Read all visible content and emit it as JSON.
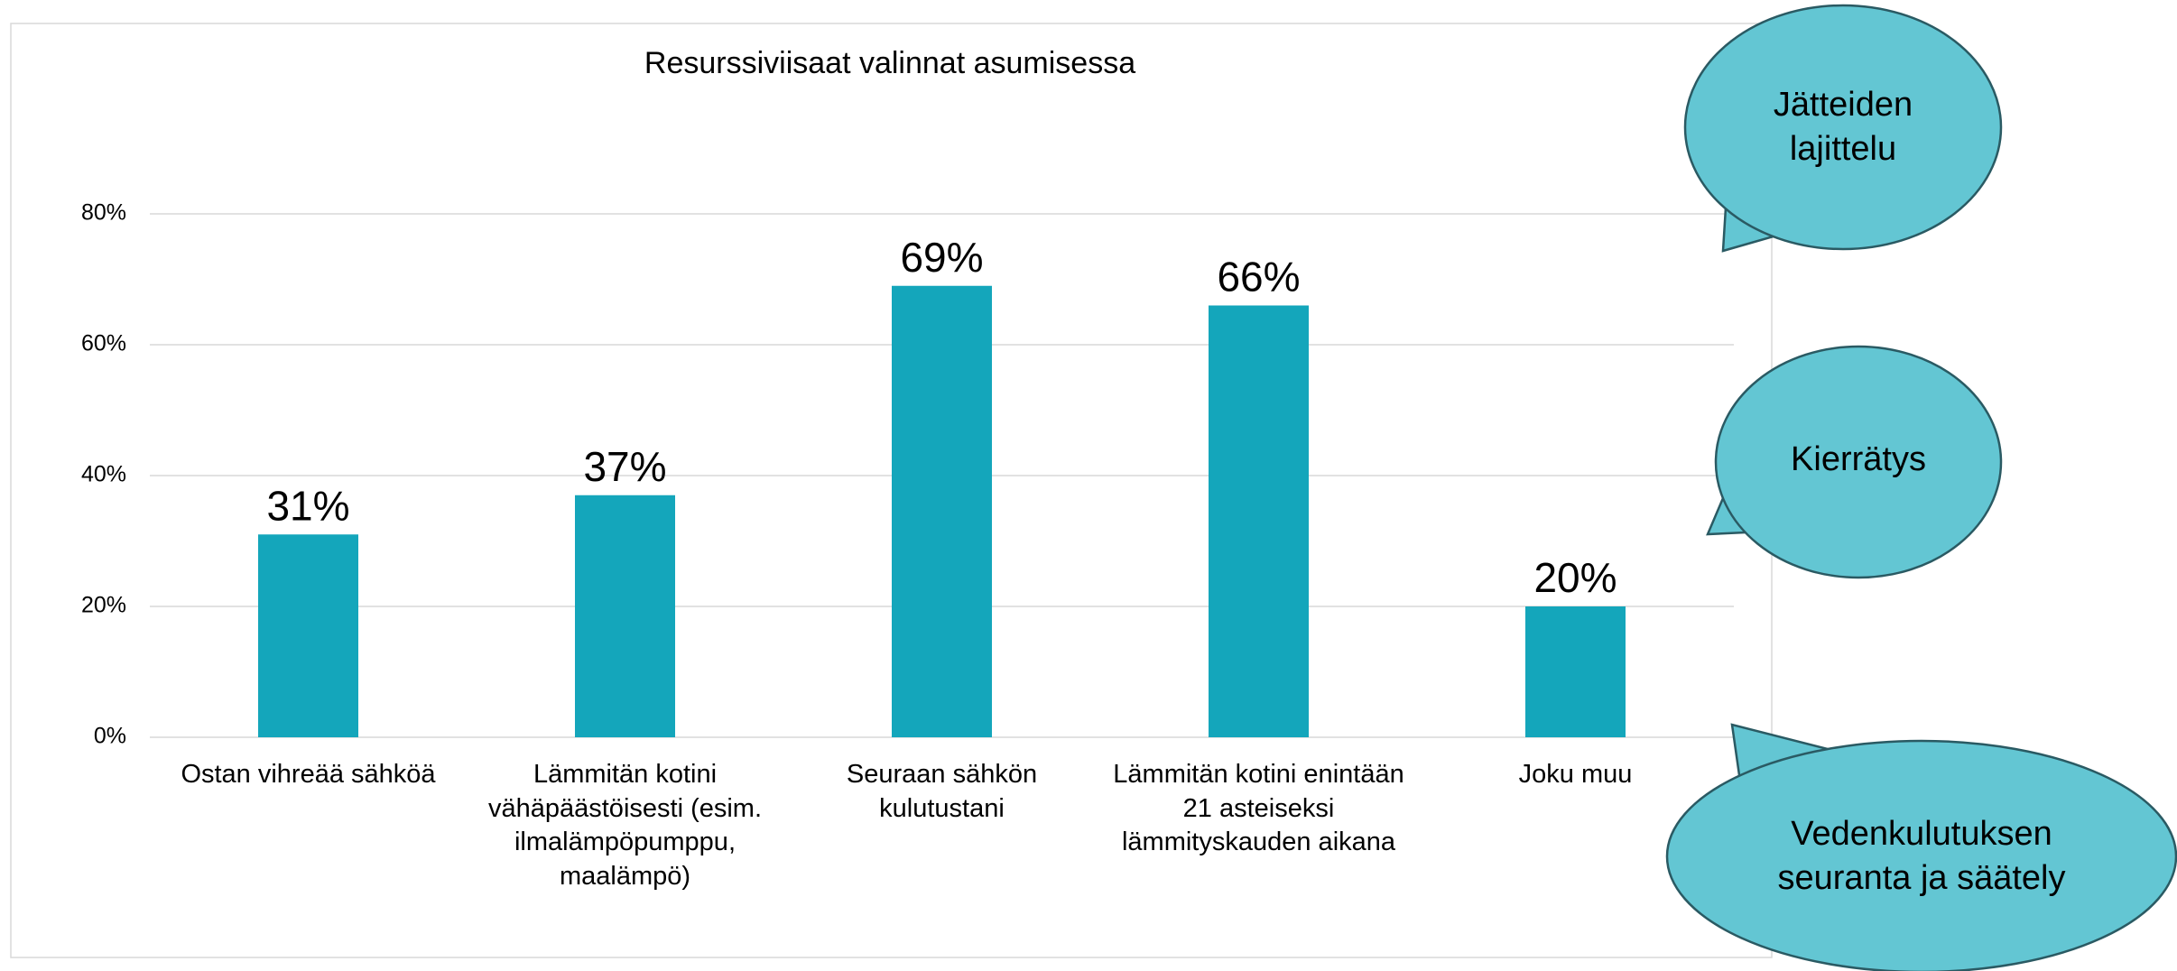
{
  "chart_data": {
    "type": "bar",
    "title": "Resurssiviisaat valinnat asumisessa",
    "categories": [
      "Ostan vihreää sähköä",
      "Lämmitän kotini\nvähäpäästöisesti (esim.\nilmalämpöpumppu,\nmaalämpö)",
      "Seuraan sähkön\nkulutustani",
      "Lämmitän kotini enintään\n21 asteiseksi\nlämmityskauden aikana",
      "Joku muu"
    ],
    "values": [
      31,
      37,
      69,
      66,
      20
    ],
    "value_labels": [
      "31%",
      "37%",
      "69%",
      "66%",
      "20%"
    ],
    "color": "#14a6bb",
    "ylim": [
      0,
      80
    ],
    "yticks": [
      {
        "value": 0,
        "label": "0%"
      },
      {
        "value": 20,
        "label": "20%"
      },
      {
        "value": 40,
        "label": "40%"
      },
      {
        "value": 60,
        "label": "60%"
      },
      {
        "value": 80,
        "label": "80%"
      }
    ],
    "grid": true,
    "annotations": [
      "Jätteiden\nlajittelu",
      "Kierrätys",
      "Vedenkulutuksen\nseuranta ja säätely"
    ]
  }
}
